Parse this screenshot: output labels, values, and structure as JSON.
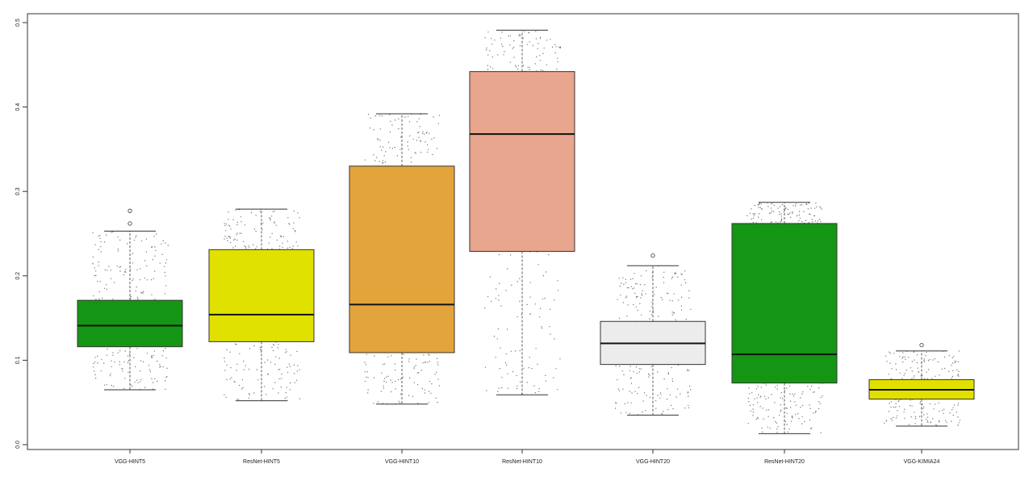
{
  "chart_data": {
    "type": "box",
    "title": "",
    "xlabel": "",
    "ylabel": "",
    "ylim": [
      0,
      0.5
    ],
    "yticks": [
      "0.0",
      "0.1",
      "0.2",
      "0.3",
      "0.4",
      "0.5"
    ],
    "grid": false,
    "series": [
      {
        "name": "VGG-HINT5",
        "color": "#149614",
        "min": 0.065,
        "q1": 0.116,
        "median": 0.141,
        "q3": 0.171,
        "max": 0.253,
        "outliers": [
          0.262,
          0.277
        ]
      },
      {
        "name": "ResNet-HINT5",
        "color": "#e1e100",
        "min": 0.052,
        "q1": 0.122,
        "median": 0.154,
        "q3": 0.231,
        "max": 0.279,
        "outliers": []
      },
      {
        "name": "VGG-HINT10",
        "color": "#e4a43c",
        "min": 0.048,
        "q1": 0.109,
        "median": 0.166,
        "q3": 0.33,
        "max": 0.392,
        "outliers": []
      },
      {
        "name": "ResNet-HINT10",
        "color": "#e9a68e",
        "min": 0.059,
        "q1": 0.229,
        "median": 0.368,
        "q3": 0.442,
        "max": 0.491,
        "outliers": []
      },
      {
        "name": "VGG-HINT20",
        "color": "#ececec",
        "min": 0.035,
        "q1": 0.095,
        "median": 0.12,
        "q3": 0.146,
        "max": 0.212,
        "outliers": [
          0.224
        ]
      },
      {
        "name": "ResNet-HINT20",
        "color": "#149614",
        "min": 0.013,
        "q1": 0.073,
        "median": 0.107,
        "q3": 0.262,
        "max": 0.287,
        "outliers": []
      },
      {
        "name": "VGG-KIMIA24",
        "color": "#e1e100",
        "min": 0.022,
        "q1": 0.054,
        "median": 0.065,
        "q3": 0.077,
        "max": 0.111,
        "outliers": [
          0.118
        ]
      }
    ]
  }
}
